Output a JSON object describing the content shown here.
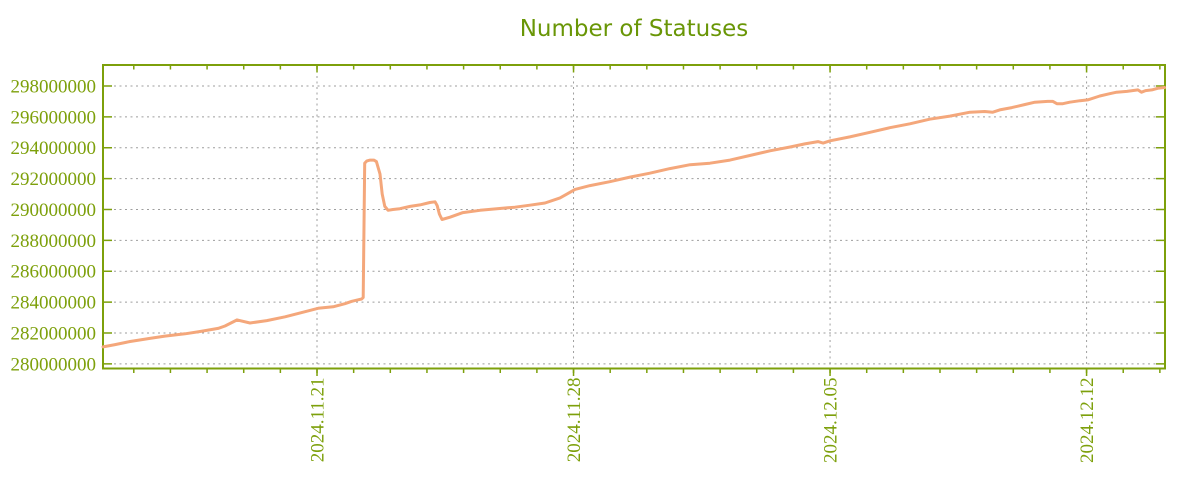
{
  "chart_data": {
    "type": "line",
    "title": "Number of Statuses",
    "title_color": "#699606",
    "axis_color": "#7da00b",
    "grid_color": "#9e9e9e",
    "background": "#ffffff",
    "legend": false,
    "grid": true,
    "x_axis": {
      "kind": "time",
      "unit": "days since 2024-11-15 00:00",
      "range": [
        0.16,
        29.14
      ],
      "minor_tick_interval": 1,
      "major_ticks": [
        {
          "pos": 6,
          "label": "2024.11.21"
        },
        {
          "pos": 13,
          "label": "2024.11.28"
        },
        {
          "pos": 20,
          "label": "2024.12.05"
        },
        {
          "pos": 27,
          "label": "2024.12.12"
        }
      ]
    },
    "y_axis": {
      "range": [
        279700000,
        299360000
      ],
      "ticks": [
        280000000,
        282000000,
        284000000,
        286000000,
        288000000,
        290000000,
        292000000,
        294000000,
        296000000,
        298000000
      ]
    },
    "series": [
      {
        "name": "Number of Statuses",
        "color": "#f4a77b",
        "width": 3,
        "points": [
          [
            0.16,
            281100000
          ],
          [
            0.49,
            281250000
          ],
          [
            0.9,
            281450000
          ],
          [
            1.44,
            281650000
          ],
          [
            1.85,
            281800000
          ],
          [
            2.4,
            281950000
          ],
          [
            2.81,
            282100000
          ],
          [
            3.3,
            282300000
          ],
          [
            3.49,
            282450000
          ],
          [
            3.82,
            282850000
          ],
          [
            4.17,
            282650000
          ],
          [
            4.63,
            282800000
          ],
          [
            5.13,
            283050000
          ],
          [
            5.54,
            283300000
          ],
          [
            6.03,
            283600000
          ],
          [
            6.44,
            283700000
          ],
          [
            6.76,
            283900000
          ],
          [
            6.95,
            284050000
          ],
          [
            7.12,
            284150000
          ],
          [
            7.22,
            284200000
          ],
          [
            7.26,
            284300000
          ],
          [
            7.3,
            293000000
          ],
          [
            7.36,
            293150000
          ],
          [
            7.45,
            293200000
          ],
          [
            7.55,
            293200000
          ],
          [
            7.62,
            293100000
          ],
          [
            7.72,
            292300000
          ],
          [
            7.78,
            291000000
          ],
          [
            7.85,
            290200000
          ],
          [
            7.94,
            289950000
          ],
          [
            8.07,
            290000000
          ],
          [
            8.26,
            290050000
          ],
          [
            8.54,
            290200000
          ],
          [
            8.81,
            290300000
          ],
          [
            9.08,
            290450000
          ],
          [
            9.22,
            290500000
          ],
          [
            9.28,
            290250000
          ],
          [
            9.34,
            289700000
          ],
          [
            9.41,
            289350000
          ],
          [
            9.63,
            289500000
          ],
          [
            9.98,
            289800000
          ],
          [
            10.45,
            289950000
          ],
          [
            10.91,
            290050000
          ],
          [
            11.4,
            290150000
          ],
          [
            11.81,
            290280000
          ],
          [
            12.22,
            290420000
          ],
          [
            12.63,
            290750000
          ],
          [
            12.82,
            291000000
          ],
          [
            13.04,
            291300000
          ],
          [
            13.45,
            291550000
          ],
          [
            13.99,
            291800000
          ],
          [
            14.54,
            292100000
          ],
          [
            15.08,
            292350000
          ],
          [
            15.63,
            292650000
          ],
          [
            16.18,
            292900000
          ],
          [
            16.72,
            293000000
          ],
          [
            17.27,
            293200000
          ],
          [
            17.81,
            293500000
          ],
          [
            18.36,
            293800000
          ],
          [
            18.91,
            294050000
          ],
          [
            19.31,
            294250000
          ],
          [
            19.67,
            294400000
          ],
          [
            19.81,
            294300000
          ],
          [
            20.0,
            294450000
          ],
          [
            20.54,
            294700000
          ],
          [
            21.09,
            295000000
          ],
          [
            21.63,
            295300000
          ],
          [
            22.18,
            295550000
          ],
          [
            22.72,
            295850000
          ],
          [
            23.27,
            296050000
          ],
          [
            23.82,
            296300000
          ],
          [
            24.22,
            296350000
          ],
          [
            24.44,
            296300000
          ],
          [
            24.63,
            296450000
          ],
          [
            24.96,
            296600000
          ],
          [
            25.32,
            296800000
          ],
          [
            25.59,
            296950000
          ],
          [
            25.94,
            297000000
          ],
          [
            26.08,
            297000000
          ],
          [
            26.19,
            296850000
          ],
          [
            26.35,
            296850000
          ],
          [
            26.54,
            296950000
          ],
          [
            26.82,
            297050000
          ],
          [
            27.03,
            297100000
          ],
          [
            27.36,
            297350000
          ],
          [
            27.63,
            297500000
          ],
          [
            27.82,
            297600000
          ],
          [
            28.1,
            297650000
          ],
          [
            28.4,
            297750000
          ],
          [
            28.5,
            297600000
          ],
          [
            28.61,
            297700000
          ],
          [
            28.78,
            297750000
          ],
          [
            28.94,
            297850000
          ],
          [
            29.13,
            297900000
          ]
        ]
      }
    ]
  }
}
